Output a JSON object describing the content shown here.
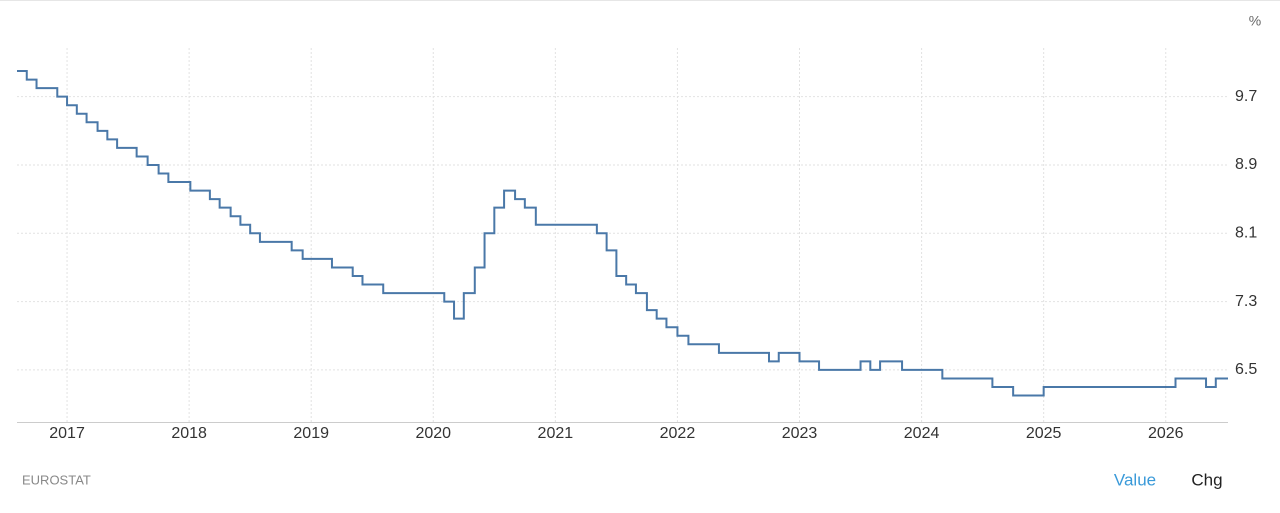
{
  "chart_data": {
    "type": "step",
    "unit": "%",
    "source": "EUROSTAT",
    "buttons": [
      "Value",
      "Chg"
    ],
    "x": [
      2016.59,
      2016.67,
      2016.75,
      2016.92,
      2017.0,
      2017.08,
      2017.16,
      2017.25,
      2017.33,
      2017.41,
      2017.57,
      2017.66,
      2017.75,
      2017.83,
      2018.01,
      2018.17,
      2018.25,
      2018.34,
      2018.42,
      2018.5,
      2018.58,
      2018.84,
      2018.93,
      2019.17,
      2019.34,
      2019.42,
      2019.59,
      2020.09,
      2020.17,
      2020.25,
      2020.34,
      2020.42,
      2020.5,
      2020.58,
      2020.67,
      2020.75,
      2020.84,
      2021.34,
      2021.42,
      2021.5,
      2021.58,
      2021.66,
      2021.75,
      2021.83,
      2021.91,
      2022.0,
      2022.09,
      2022.34,
      2022.75,
      2022.83,
      2023.0,
      2023.16,
      2023.5,
      2023.58,
      2023.66,
      2023.84,
      2024.17,
      2024.58,
      2024.75,
      2025.0,
      2026.08,
      2026.33,
      2026.41
    ],
    "values": [
      10.0,
      9.9,
      9.8,
      9.7,
      9.6,
      9.5,
      9.4,
      9.3,
      9.2,
      9.1,
      9.0,
      8.9,
      8.8,
      8.7,
      8.6,
      8.5,
      8.4,
      8.3,
      8.2,
      8.1,
      8.0,
      7.9,
      7.8,
      7.7,
      7.6,
      7.5,
      7.4,
      7.3,
      7.1,
      7.4,
      7.7,
      8.1,
      8.4,
      8.6,
      8.5,
      8.4,
      8.2,
      8.1,
      7.9,
      7.6,
      7.5,
      7.4,
      7.2,
      7.1,
      7.0,
      6.9,
      6.8,
      6.7,
      6.6,
      6.7,
      6.6,
      6.5,
      6.6,
      6.5,
      6.6,
      6.5,
      6.4,
      6.3,
      6.2,
      6.3,
      6.4,
      6.3,
      6.4
    ],
    "color": "#4a78a8",
    "xlim": [
      2016.59,
      2026.51
    ],
    "xticks": [
      2017,
      2018,
      2019,
      2020,
      2021,
      2022,
      2023,
      2024,
      2025,
      2026
    ],
    "ylim": [
      5.89,
      10.27
    ],
    "yticks": [
      6.5,
      7.3,
      8.1,
      8.9,
      9.7
    ],
    "grid": true
  }
}
